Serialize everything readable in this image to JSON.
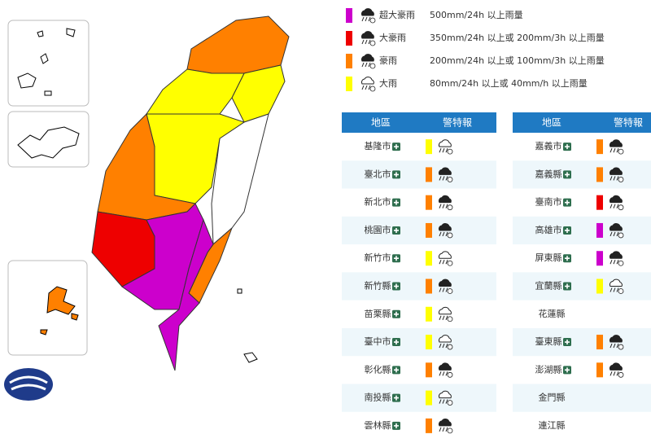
{
  "legend": [
    {
      "label": "超大豪雨",
      "desc": "500mm/24h 以上雨量",
      "color": "#cc00cc"
    },
    {
      "label": "大豪雨",
      "desc": "350mm/24h 以上或 200mm/3h 以上雨量",
      "color": "#ee0000"
    },
    {
      "label": "豪雨",
      "desc": "200mm/24h 以上或 100mm/3h 以上雨量",
      "color": "#ff8000"
    },
    {
      "label": "大雨",
      "desc": "80mm/24h 以上或 40mm/h 以上雨量",
      "color": "#ffff00"
    }
  ],
  "table": {
    "headers": [
      "地區",
      "警特報"
    ],
    "left": [
      {
        "region": "基隆市",
        "level": 3
      },
      {
        "region": "臺北市",
        "level": 2
      },
      {
        "region": "新北市",
        "level": 2
      },
      {
        "region": "桃園市",
        "level": 2
      },
      {
        "region": "新竹市",
        "level": 3
      },
      {
        "region": "新竹縣",
        "level": 2
      },
      {
        "region": "苗栗縣",
        "level": 3
      },
      {
        "region": "臺中市",
        "level": 3
      },
      {
        "region": "彰化縣",
        "level": 2
      },
      {
        "region": "南投縣",
        "level": 3
      },
      {
        "region": "雲林縣",
        "level": 2
      }
    ],
    "right": [
      {
        "region": "嘉義市",
        "level": 2
      },
      {
        "region": "嘉義縣",
        "level": 2
      },
      {
        "region": "臺南市",
        "level": 1
      },
      {
        "region": "高雄市",
        "level": 0
      },
      {
        "region": "屏東縣",
        "level": 0
      },
      {
        "region": "宜蘭縣",
        "level": 3
      },
      {
        "region": "花蓮縣",
        "level": null
      },
      {
        "region": "臺東縣",
        "level": 2
      },
      {
        "region": "澎湖縣",
        "level": 2
      },
      {
        "region": "金門縣",
        "level": null
      },
      {
        "region": "連江縣",
        "level": null
      }
    ]
  }
}
